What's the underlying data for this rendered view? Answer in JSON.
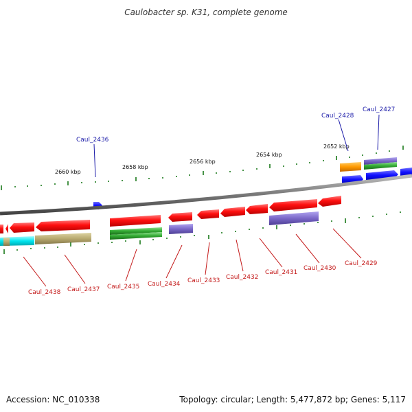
{
  "title": "Caulobacter sp. K31, complete genome",
  "footer": {
    "accession": "Accession: NC_010338",
    "summary": "Topology: circular; Length: 5,477,872 bp; Genes: 5,117"
  },
  "scale_labels": [
    "2660 kbp",
    "2658 kbp",
    "2656 kbp",
    "2654 kbp",
    "2652 kbp"
  ],
  "forward_gene_labels": [
    "Caul_2436",
    "Caul_2428",
    "Caul_2427"
  ],
  "reverse_gene_labels": [
    "Caul_2438",
    "Caul_2437",
    "Caul_2435",
    "Caul_2434",
    "Caul_2433",
    "Caul_2432",
    "Caul_2431",
    "Caul_2430",
    "Caul_2429"
  ],
  "colors": {
    "cds": "#ff0000",
    "forward_cds": "#0000ff",
    "tick": "#1a7a1a",
    "backbone": "#8a8a8a",
    "purple": "#7b68c8",
    "green": "#33aa33",
    "orange": "#ff9900",
    "cyan": "#00e5ee",
    "khaki": "#b8aa70",
    "fwd_label": "#1a1aa8",
    "rev_label": "#c41a1a"
  }
}
